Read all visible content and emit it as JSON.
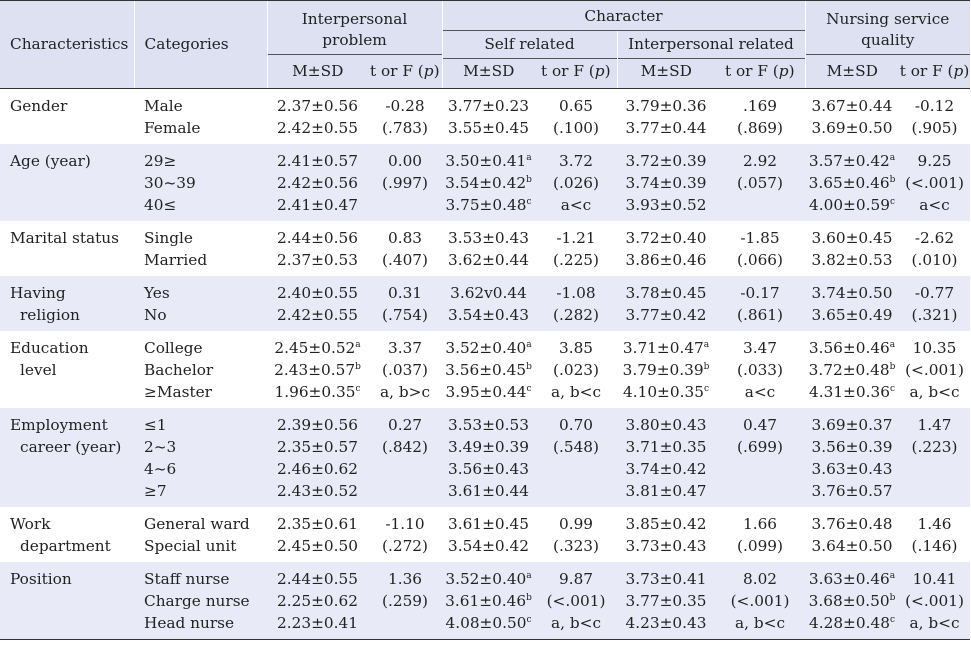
{
  "headers": {
    "characteristics": "Characteristics",
    "categories": "Categories",
    "interpersonal_problem": "Interpersonal problem",
    "character": "Character",
    "self_related": "Self related",
    "interpersonal_related": "Interpersonal related",
    "nursing_service_quality": "Nursing service quality",
    "msd": "M±SD",
    "tf_prefix": "t or F (",
    "tf_p": "p",
    "tf_suffix": ")"
  },
  "rows": [
    {
      "characteristic": [
        "Gender"
      ],
      "categories": [
        "Male",
        "Female"
      ],
      "ip_msd": [
        "2.37±0.56",
        "2.42±0.55"
      ],
      "ip_tf": [
        "-0.28",
        "(.783)"
      ],
      "sr_msd": [
        "3.77±0.23",
        "3.55±0.45"
      ],
      "sr_tf": [
        "0.65",
        "(.100)"
      ],
      "ir_msd": [
        "3.79±0.36",
        "3.77±0.44"
      ],
      "ir_tf": [
        ".169",
        "(.869)"
      ],
      "ns_msd": [
        "3.67±0.44",
        "3.69±0.50"
      ],
      "ns_tf": [
        "-0.12",
        "(.905)"
      ]
    },
    {
      "characteristic": [
        "Age (year)"
      ],
      "categories": [
        "29≥",
        "30~39",
        "40≤"
      ],
      "ip_msd": [
        "2.41±0.57",
        "2.42±0.56",
        "2.41±0.47"
      ],
      "ip_tf": [
        "0.00",
        "(.997)"
      ],
      "sr_msd": [
        "3.50±0.41",
        "3.54±0.42",
        "3.75±0.48"
      ],
      "sr_sup": [
        "a",
        "b",
        "c"
      ],
      "sr_tf": [
        "3.72",
        "(.026)",
        "a<c"
      ],
      "ir_msd": [
        "3.72±0.39",
        "3.74±0.39",
        "3.93±0.52"
      ],
      "ir_tf": [
        "2.92",
        "(.057)"
      ],
      "ns_msd": [
        "3.57±0.42",
        "3.65±0.46",
        "4.00±0.59"
      ],
      "ns_sup": [
        "a",
        "b",
        "c"
      ],
      "ns_tf": [
        "9.25",
        "(<.001)",
        "a<c"
      ]
    },
    {
      "characteristic": [
        "Marital status"
      ],
      "categories": [
        "Single",
        "Married"
      ],
      "ip_msd": [
        "2.44±0.56",
        "2.37±0.53"
      ],
      "ip_tf": [
        "0.83",
        "(.407)"
      ],
      "sr_msd": [
        "3.53±0.43",
        "3.62±0.44"
      ],
      "sr_tf": [
        "-1.21",
        "(.225)"
      ],
      "ir_msd": [
        "3.72±0.40",
        "3.86±0.46"
      ],
      "ir_tf": [
        "-1.85",
        "(.066)"
      ],
      "ns_msd": [
        "3.60±0.45",
        "3.82±0.53"
      ],
      "ns_tf": [
        "-2.62",
        "(.010)"
      ]
    },
    {
      "characteristic": [
        "Having",
        "religion"
      ],
      "categories": [
        "Yes",
        "No"
      ],
      "ip_msd": [
        "2.40±0.55",
        "2.42±0.55"
      ],
      "ip_tf": [
        "0.31",
        "(.754)"
      ],
      "sr_msd": [
        "3.62v0.44",
        "3.54±0.43"
      ],
      "sr_tf": [
        "-1.08",
        "(.282)"
      ],
      "ir_msd": [
        "3.78±0.45",
        "3.77±0.42"
      ],
      "ir_tf": [
        "-0.17",
        "(.861)"
      ],
      "ns_msd": [
        "3.74±0.50",
        "3.65±0.49"
      ],
      "ns_tf": [
        "-0.77",
        "(.321)"
      ]
    },
    {
      "characteristic": [
        "Education",
        "level"
      ],
      "categories": [
        "College",
        "Bachelor",
        "≥Master"
      ],
      "ip_msd": [
        "2.45±0.52",
        "2.43±0.57",
        "1.96±0.35"
      ],
      "ip_sup": [
        "a",
        "b",
        "c"
      ],
      "ip_tf": [
        "3.37",
        "(.037)",
        "a, b>c"
      ],
      "sr_msd": [
        "3.52±0.40",
        "3.56±0.45",
        "3.95±0.44"
      ],
      "sr_sup": [
        "a",
        "b",
        "c"
      ],
      "sr_tf": [
        "3.85",
        "(.023)",
        "a, b<c"
      ],
      "ir_msd": [
        "3.71±0.47",
        "3.79±0.39",
        "4.10±0.35"
      ],
      "ir_sup": [
        "a",
        "b",
        "c"
      ],
      "ir_tf": [
        "3.47",
        "(.033)",
        "a<c"
      ],
      "ns_msd": [
        "3.56±0.46",
        "3.72±0.48",
        "4.31±0.36"
      ],
      "ns_sup": [
        "a",
        "b",
        "c"
      ],
      "ns_tf": [
        "10.35",
        "(<.001)",
        "a, b<c"
      ]
    },
    {
      "characteristic": [
        "Employment",
        "career (year)"
      ],
      "categories": [
        "≤1",
        "2~3",
        "4~6",
        "≥7"
      ],
      "ip_msd": [
        "2.39±0.56",
        "2.35±0.57",
        "2.46±0.62",
        "2.43±0.52"
      ],
      "ip_tf": [
        "0.27",
        "(.842)"
      ],
      "sr_msd": [
        "3.53±0.53",
        "3.49±0.39",
        "3.56±0.43",
        "3.61±0.44"
      ],
      "sr_tf": [
        "0.70",
        "(.548)"
      ],
      "ir_msd": [
        "3.80±0.43",
        "3.71±0.35",
        "3.74±0.42",
        "3.81±0.47"
      ],
      "ir_tf": [
        "0.47",
        "(.699)"
      ],
      "ns_msd": [
        "3.69±0.37",
        "3.56±0.39",
        "3.63±0.43",
        "3.76±0.57"
      ],
      "ns_tf": [
        "1.47",
        "(.223)"
      ]
    },
    {
      "characteristic": [
        "Work",
        "department"
      ],
      "categories": [
        "General ward",
        "Special unit"
      ],
      "ip_msd": [
        "2.35±0.61",
        "2.45±0.50"
      ],
      "ip_tf": [
        "-1.10",
        "(.272)"
      ],
      "sr_msd": [
        "3.61±0.45",
        "3.54±0.42"
      ],
      "sr_tf": [
        "0.99",
        "(.323)"
      ],
      "ir_msd": [
        "3.85±0.42",
        "3.73±0.43"
      ],
      "ir_tf": [
        "1.66",
        "(.099)"
      ],
      "ns_msd": [
        "3.76±0.48",
        "3.64±0.50"
      ],
      "ns_tf": [
        "1.46",
        "(.146)"
      ]
    },
    {
      "characteristic": [
        "Position"
      ],
      "categories": [
        "Staff nurse",
        "Charge nurse",
        "Head nurse"
      ],
      "ip_msd": [
        "2.44±0.55",
        "2.25±0.62",
        "2.23±0.41"
      ],
      "ip_tf": [
        "1.36",
        "(.259)"
      ],
      "sr_msd": [
        "3.52±0.40",
        "3.61±0.46",
        "4.08±0.50"
      ],
      "sr_sup": [
        "a",
        "b",
        "c"
      ],
      "sr_tf": [
        "9.87",
        "(<.001)",
        "a, b<c"
      ],
      "ir_msd": [
        "3.73±0.41",
        "3.77±0.35",
        "4.23±0.43"
      ],
      "ir_tf": [
        "8.02",
        "(<.001)",
        "a, b<c"
      ],
      "ns_msd": [
        "3.63±0.46",
        "3.68±0.50",
        "4.28±0.48"
      ],
      "ns_sup": [
        "a",
        "b",
        "c"
      ],
      "ns_tf": [
        "10.41",
        "(<.001)",
        "a, b<c"
      ]
    }
  ]
}
